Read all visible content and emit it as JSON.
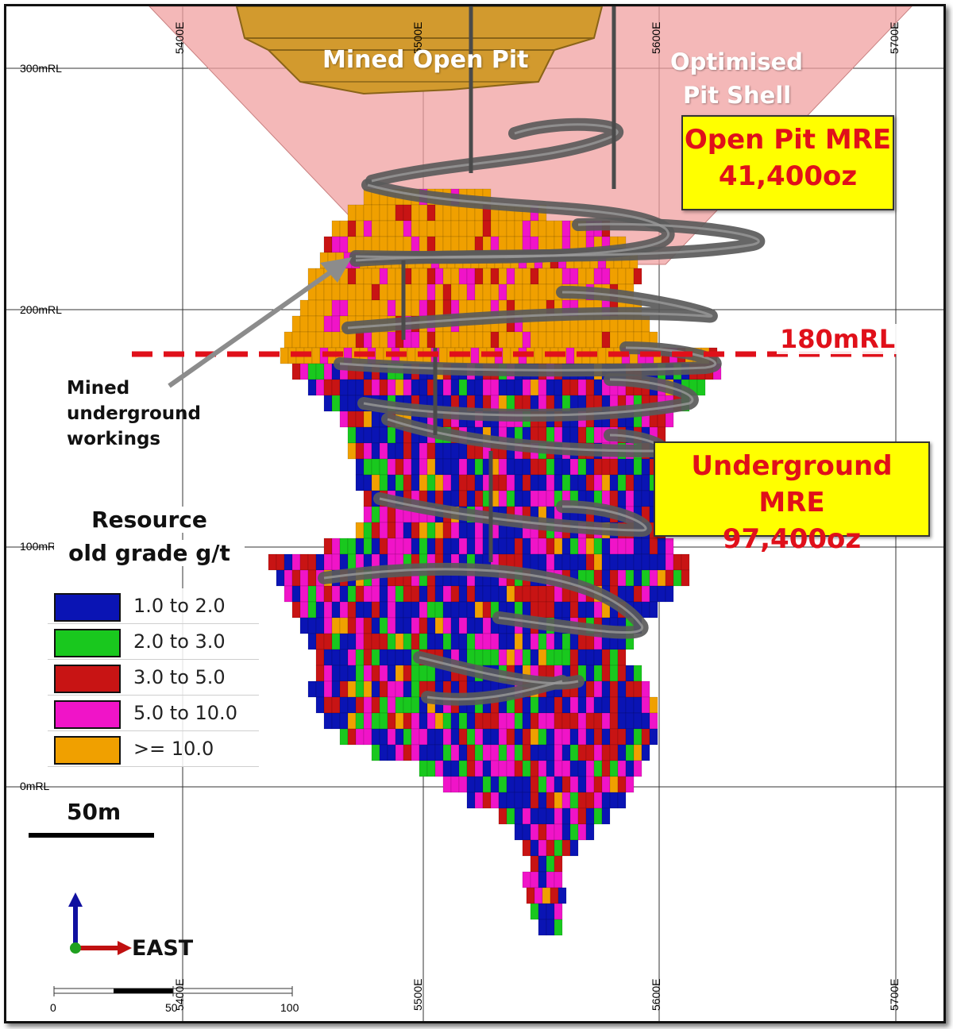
{
  "labels": {
    "mined_open_pit": "Mined Open Pit",
    "optimised_line1": "Optimised",
    "optimised_line2": "Pit Shell",
    "open_pit_mre_title": "Open Pit MRE",
    "open_pit_mre_value": "41,400oz",
    "underground_mre_title": "Underground MRE",
    "underground_mre_value": "97,400oz",
    "rl_180": "180mRL",
    "mined_ug_line1": "Mined",
    "mined_ug_line2": "underground",
    "mined_ug_line3": "workings",
    "scale_50m": "50m",
    "east_arrow": "EAST"
  },
  "grid": {
    "rl_labels": [
      "300mRL",
      "200mRL",
      "100mRL",
      "0mRL"
    ],
    "easting_labels": [
      "5400E",
      "5500E",
      "5600E",
      "5700E"
    ]
  },
  "legend": {
    "title_line1": "Resource",
    "title_line2": "old grade g/t",
    "items": [
      {
        "label": "1.0 to 2.0",
        "color": "#0a14b4"
      },
      {
        "label": "2.0 to 3.0",
        "color": "#19c81e"
      },
      {
        "label": "3.0 to 5.0",
        "color": "#c81414"
      },
      {
        "label": "5.0 to 10.0",
        "color": "#f014c8"
      },
      {
        "label": ">= 10.0",
        "color": "#f0a000"
      }
    ]
  },
  "scale_ruler": {
    "ticks": [
      "0",
      "50",
      "100"
    ]
  },
  "colors": {
    "pit_shell": "#f0a0a0",
    "mined_pit": "#d29a2e",
    "workings": "#5a5a5a",
    "rl_line": "#e0101a",
    "mre_box_bg": "#ffff00",
    "mre_text": "#e0101a"
  }
}
